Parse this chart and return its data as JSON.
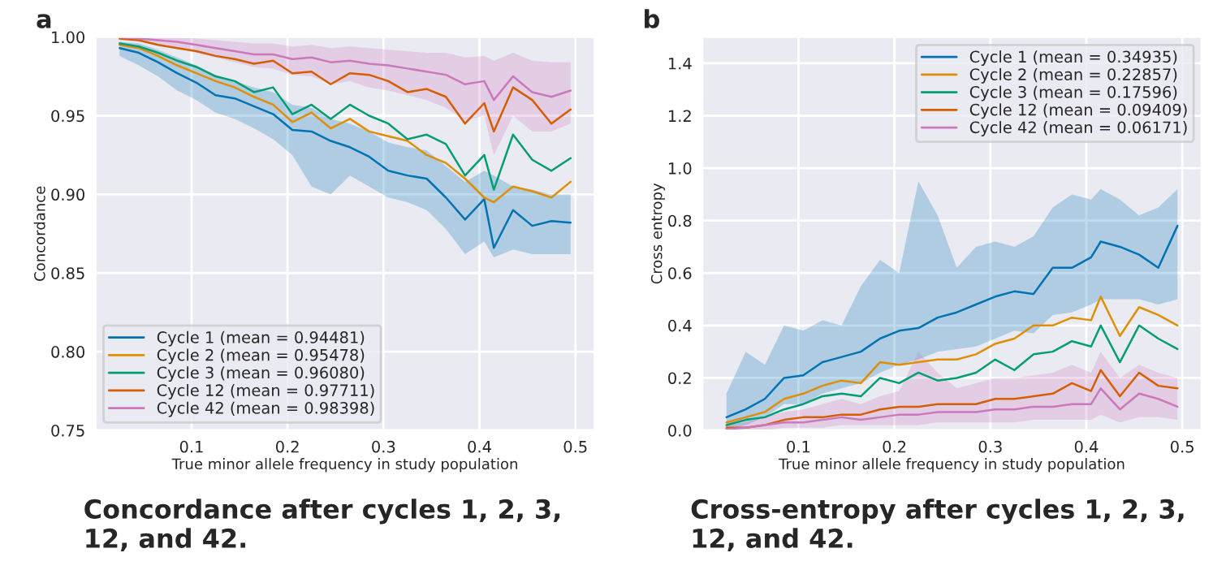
{
  "chart_data": [
    {
      "type": "line",
      "title": "Concordance after cycles 1, 2, 3, 12, and 42.",
      "xlabel": "True minor allele frequency in study population",
      "ylabel": "Concordance",
      "annotations": [
        "a"
      ],
      "x": [
        0.025,
        0.045,
        0.065,
        0.085,
        0.105,
        0.125,
        0.145,
        0.165,
        0.185,
        0.205,
        0.225,
        0.245,
        0.265,
        0.285,
        0.305,
        0.325,
        0.345,
        0.365,
        0.385,
        0.405,
        0.415,
        0.435,
        0.455,
        0.475,
        0.495
      ],
      "xlim": [
        0,
        0.52
      ],
      "xticks": [
        0.1,
        0.2,
        0.3,
        0.4,
        0.5
      ],
      "ylim": [
        0.75,
        1.0
      ],
      "yticks": [
        0.75,
        {
          "value": 0.8,
          "label": "0.80"
        },
        0.85,
        {
          "value": 0.9,
          "label": "0.90"
        },
        0.95,
        {
          "value": 1.0,
          "label": "1.00"
        }
      ],
      "grid": true,
      "legend": "bottom left",
      "line_style": "solid",
      "series": [
        {
          "name": "Cycle 1 (mean = 0.94481)",
          "color": "#0173b2",
          "values": [
            0.993,
            0.99,
            0.984,
            0.977,
            0.971,
            0.963,
            0.961,
            0.956,
            0.951,
            0.941,
            0.94,
            0.934,
            0.93,
            0.924,
            0.915,
            0.912,
            0.91,
            0.898,
            0.884,
            0.897,
            0.866,
            0.89,
            0.88,
            0.883,
            0.882
          ],
          "lower": [
            0.988,
            0.982,
            0.975,
            0.966,
            0.96,
            0.952,
            0.948,
            0.942,
            0.935,
            0.925,
            0.905,
            0.9,
            0.912,
            0.905,
            0.898,
            0.895,
            0.89,
            0.878,
            0.862,
            0.87,
            0.86,
            0.865,
            0.862,
            0.862,
            0.862
          ],
          "upper": [
            0.997,
            0.996,
            0.992,
            0.987,
            0.982,
            0.976,
            0.972,
            0.968,
            0.965,
            0.957,
            0.955,
            0.948,
            0.945,
            0.94,
            0.933,
            0.93,
            0.928,
            0.918,
            0.908,
            0.915,
            0.912,
            0.905,
            0.903,
            0.9,
            0.9
          ]
        },
        {
          "name": "Cycle 2 (mean = 0.95478)",
          "color": "#de8f05",
          "values": [
            0.995,
            0.993,
            0.988,
            0.982,
            0.977,
            0.972,
            0.968,
            0.962,
            0.957,
            0.946,
            0.952,
            0.942,
            0.948,
            0.94,
            0.937,
            0.934,
            0.925,
            0.92,
            0.91,
            0.898,
            0.895,
            0.905,
            0.902,
            0.898,
            0.908
          ]
        },
        {
          "name": "Cycle 3 (mean = 0.96080)",
          "color": "#029e73",
          "values": [
            0.996,
            0.994,
            0.99,
            0.985,
            0.981,
            0.975,
            0.972,
            0.965,
            0.968,
            0.951,
            0.957,
            0.948,
            0.957,
            0.95,
            0.945,
            0.935,
            0.938,
            0.932,
            0.912,
            0.925,
            0.903,
            0.938,
            0.922,
            0.915,
            0.923
          ]
        },
        {
          "name": "Cycle 12 (mean = 0.97711)",
          "color": "#d55e00",
          "values": [
            0.999,
            0.998,
            0.995,
            0.993,
            0.991,
            0.988,
            0.986,
            0.983,
            0.985,
            0.977,
            0.978,
            0.97,
            0.977,
            0.976,
            0.972,
            0.965,
            0.967,
            0.962,
            0.945,
            0.958,
            0.94,
            0.968,
            0.96,
            0.945,
            0.954
          ]
        },
        {
          "name": "Cycle 42 (mean = 0.98398)",
          "color": "#cc78bc",
          "values": [
            1.0,
            0.999,
            0.998,
            0.997,
            0.995,
            0.993,
            0.991,
            0.989,
            0.989,
            0.986,
            0.987,
            0.984,
            0.985,
            0.983,
            0.982,
            0.98,
            0.978,
            0.976,
            0.97,
            0.972,
            0.96,
            0.975,
            0.965,
            0.962,
            0.966
          ],
          "lower": [
            0.998,
            0.997,
            0.995,
            0.993,
            0.99,
            0.987,
            0.984,
            0.981,
            0.98,
            0.976,
            0.975,
            0.97,
            0.972,
            0.968,
            0.966,
            0.963,
            0.96,
            0.955,
            0.947,
            0.95,
            0.925,
            0.95,
            0.94,
            0.94,
            0.945
          ],
          "upper": [
            1.0,
            1.0,
            1.0,
            1.0,
            0.999,
            0.998,
            0.997,
            0.996,
            0.996,
            0.994,
            0.995,
            0.993,
            0.994,
            0.993,
            0.992,
            0.991,
            0.99,
            0.99,
            0.987,
            0.988,
            0.985,
            0.99,
            0.985,
            0.984,
            0.984
          ]
        }
      ]
    },
    {
      "type": "line",
      "title": "Cross-entropy after cycles 1, 2, 3, 12, and 42.",
      "xlabel": "True minor allele frequency in study population",
      "ylabel": "Cross entropy",
      "annotations": [
        "b"
      ],
      "x": [
        0.025,
        0.045,
        0.065,
        0.085,
        0.105,
        0.125,
        0.145,
        0.165,
        0.185,
        0.205,
        0.225,
        0.245,
        0.265,
        0.285,
        0.305,
        0.325,
        0.345,
        0.365,
        0.385,
        0.405,
        0.415,
        0.435,
        0.455,
        0.475,
        0.495
      ],
      "xlim": [
        0,
        0.52
      ],
      "xticks": [
        0.1,
        0.2,
        0.3,
        0.4,
        0.5
      ],
      "ylim": [
        0,
        1.5
      ],
      "yticks": [
        {
          "value": 0,
          "label": "0.0"
        },
        0.2,
        0.4,
        0.6,
        0.8,
        {
          "value": 1,
          "label": "1.0"
        },
        1.2,
        1.4
      ],
      "grid": true,
      "legend": "top right",
      "line_style": "solid",
      "series": [
        {
          "name": "Cycle 1 (mean = 0.34935)",
          "color": "#0173b2",
          "values": [
            0.05,
            0.08,
            0.12,
            0.2,
            0.21,
            0.26,
            0.28,
            0.3,
            0.35,
            0.38,
            0.39,
            0.43,
            0.45,
            0.48,
            0.51,
            0.53,
            0.52,
            0.62,
            0.62,
            0.66,
            0.72,
            0.7,
            0.67,
            0.62,
            0.78
          ],
          "lower": [
            0.0,
            0.02,
            0.05,
            0.1,
            0.1,
            0.14,
            0.16,
            0.18,
            0.22,
            0.25,
            0.27,
            0.3,
            0.31,
            0.32,
            0.35,
            0.38,
            0.37,
            0.44,
            0.45,
            0.48,
            0.5,
            0.5,
            0.5,
            0.48,
            0.5
          ],
          "upper": [
            0.14,
            0.3,
            0.25,
            0.4,
            0.38,
            0.42,
            0.4,
            0.55,
            0.65,
            0.6,
            0.95,
            0.82,
            0.62,
            0.7,
            0.72,
            0.7,
            0.74,
            0.85,
            0.9,
            0.88,
            0.92,
            0.88,
            0.82,
            0.85,
            0.92
          ]
        },
        {
          "name": "Cycle 2 (mean = 0.22857)",
          "color": "#de8f05",
          "values": [
            0.03,
            0.05,
            0.07,
            0.12,
            0.14,
            0.17,
            0.19,
            0.18,
            0.26,
            0.25,
            0.26,
            0.27,
            0.27,
            0.29,
            0.33,
            0.35,
            0.4,
            0.4,
            0.43,
            0.42,
            0.51,
            0.36,
            0.47,
            0.44,
            0.4
          ]
        },
        {
          "name": "Cycle 3 (mean = 0.17596)",
          "color": "#029e73",
          "values": [
            0.02,
            0.04,
            0.05,
            0.08,
            0.1,
            0.13,
            0.14,
            0.13,
            0.2,
            0.18,
            0.22,
            0.19,
            0.2,
            0.22,
            0.27,
            0.23,
            0.29,
            0.3,
            0.34,
            0.32,
            0.4,
            0.26,
            0.4,
            0.35,
            0.31
          ]
        },
        {
          "name": "Cycle 12 (mean = 0.09409)",
          "color": "#d55e00",
          "values": [
            0.01,
            0.01,
            0.02,
            0.04,
            0.05,
            0.05,
            0.06,
            0.06,
            0.08,
            0.09,
            0.09,
            0.1,
            0.1,
            0.1,
            0.12,
            0.12,
            0.13,
            0.14,
            0.18,
            0.15,
            0.23,
            0.13,
            0.22,
            0.17,
            0.16
          ]
        },
        {
          "name": "Cycle 42 (mean = 0.06171)",
          "color": "#cc78bc",
          "values": [
            0.005,
            0.01,
            0.02,
            0.03,
            0.03,
            0.04,
            0.05,
            0.04,
            0.05,
            0.06,
            0.06,
            0.07,
            0.07,
            0.07,
            0.08,
            0.08,
            0.09,
            0.09,
            0.1,
            0.1,
            0.16,
            0.08,
            0.14,
            0.12,
            0.09
          ],
          "lower": [
            0.0,
            0.0,
            0.0,
            0.01,
            0.01,
            0.01,
            0.02,
            0.02,
            0.02,
            0.02,
            0.02,
            0.03,
            0.03,
            0.03,
            0.03,
            0.03,
            0.04,
            0.04,
            0.04,
            0.04,
            0.06,
            0.03,
            0.05,
            0.05,
            0.04
          ],
          "upper": [
            0.02,
            0.03,
            0.05,
            0.07,
            0.08,
            0.1,
            0.12,
            0.1,
            0.13,
            0.15,
            0.3,
            0.22,
            0.16,
            0.18,
            0.2,
            0.2,
            0.21,
            0.22,
            0.25,
            0.22,
            0.3,
            0.2,
            0.25,
            0.22,
            0.2
          ]
        }
      ]
    }
  ]
}
